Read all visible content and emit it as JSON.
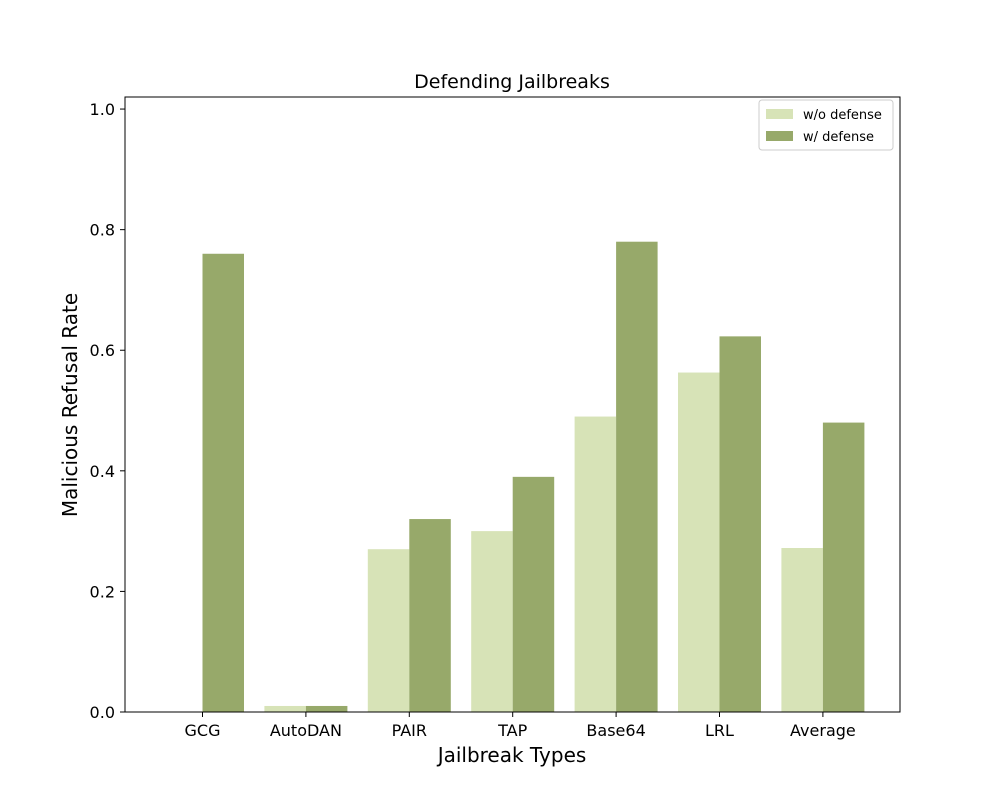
{
  "chart_data": {
    "type": "bar",
    "title": "Defending Jailbreaks",
    "xlabel": "Jailbreak Types",
    "ylabel": "Malicious Refusal Rate",
    "categories": [
      "GCG",
      "AutoDAN",
      "PAIR",
      "TAP",
      "Base64",
      "LRL",
      "Average"
    ],
    "series": [
      {
        "name": "w/o defense",
        "color": "#d7e3b7",
        "values": [
          0.0,
          0.01,
          0.27,
          0.3,
          0.49,
          0.563,
          0.272
        ]
      },
      {
        "name": "w/ defense",
        "color": "#97a96a",
        "values": [
          0.76,
          0.01,
          0.32,
          0.39,
          0.78,
          0.623,
          0.48
        ]
      }
    ],
    "ylim": [
      0,
      1.02
    ],
    "yticks": [
      0.0,
      0.2,
      0.4,
      0.6,
      0.8,
      1.0
    ],
    "ytick_labels": [
      "0.0",
      "0.2",
      "0.4",
      "0.6",
      "0.8",
      "1.0"
    ],
    "grid": false,
    "legend_position": "top-right"
  }
}
